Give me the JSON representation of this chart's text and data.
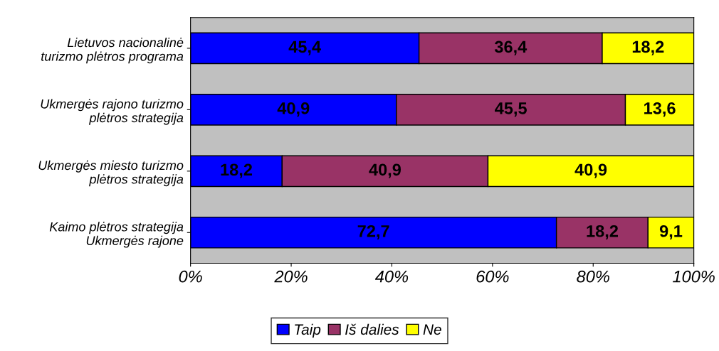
{
  "chart_data": {
    "type": "bar",
    "orientation": "horizontal",
    "stacked": true,
    "categories": [
      "Lietuvos nacionalinė\nturizmo plėtros programa",
      "Ukmergės rajono turizmo\nplėtros strategija",
      "Ukmergės miesto turizmo\nplėtros strategija",
      "Kaimo plėtros strategija\nUkmergės rajone"
    ],
    "series": [
      {
        "name": "Taip",
        "color": "#0000ff",
        "values": [
          45.4,
          40.9,
          18.2,
          72.7
        ],
        "value_labels": [
          "45,4",
          "40,9",
          "18,2",
          "72,7"
        ]
      },
      {
        "name": "Iš dalies",
        "color": "#993366",
        "values": [
          36.4,
          45.5,
          40.9,
          18.2
        ],
        "value_labels": [
          "36,4",
          "45,5",
          "40,9",
          "18,2"
        ]
      },
      {
        "name": "Ne",
        "color": "#ffff00",
        "values": [
          18.2,
          13.6,
          40.9,
          9.1
        ],
        "value_labels": [
          "18,2",
          "13,6",
          "40,9",
          "9,1"
        ]
      }
    ],
    "xlim": [
      0,
      100
    ],
    "xticks": [
      {
        "value": 0,
        "label": "0%"
      },
      {
        "value": 20,
        "label": "20%"
      },
      {
        "value": 40,
        "label": "40%"
      },
      {
        "value": 60,
        "label": "60%"
      },
      {
        "value": 80,
        "label": "80%"
      },
      {
        "value": 100,
        "label": "100%"
      }
    ],
    "grid": false,
    "legend": "bottom"
  }
}
